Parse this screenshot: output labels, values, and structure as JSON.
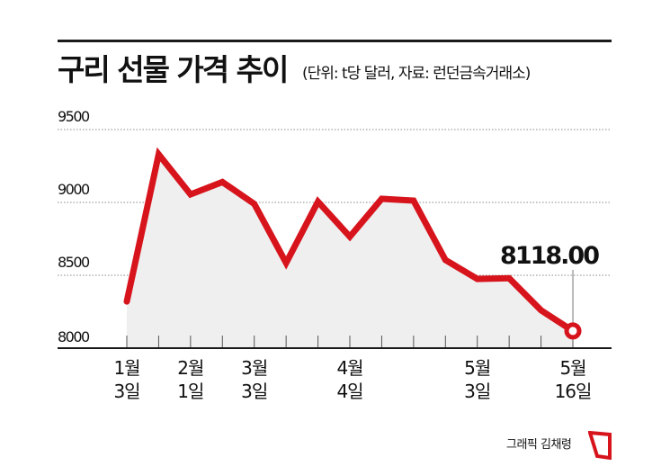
{
  "header": {
    "title": "구리 선물 가격 추이",
    "subtitle": "(단위: t당 달러, 자료: 런던금속거래소)"
  },
  "footer": {
    "credit": "그래픽 김채령"
  },
  "colors": {
    "line": "#d7141c",
    "fill": "#efefef",
    "grid": "#888888",
    "axis": "#1a1a1a"
  },
  "chart_data": {
    "type": "area",
    "title": "구리 선물 가격 추이",
    "subtitle": "(단위: t당 달러, 자료: 런던금속거래소)",
    "xlabel": "",
    "ylabel": "t당 달러",
    "ylim": [
      8000,
      9500
    ],
    "yticks": [
      8000,
      8500,
      9000,
      9500
    ],
    "grid": "horizontal dotted",
    "x_tick_labels": [
      {
        "index": 0,
        "line1": "1월",
        "line2": "3일"
      },
      {
        "index": 2,
        "line1": "2월",
        "line2": "1일"
      },
      {
        "index": 4,
        "line1": "3월",
        "line2": "3일"
      },
      {
        "index": 7,
        "line1": "4월",
        "line2": "4일"
      },
      {
        "index": 11,
        "line1": "5월",
        "line2": "3일"
      },
      {
        "index": 14,
        "line1": "5월",
        "line2": "16일"
      }
    ],
    "series": [
      {
        "name": "구리 선물 가격",
        "values": [
          8320,
          9330,
          9055,
          9140,
          8990,
          8585,
          9005,
          8765,
          9025,
          9012,
          8605,
          8475,
          8480,
          8260,
          8118
        ]
      }
    ],
    "annotations": [
      {
        "index": 14,
        "text": "8118.00"
      }
    ]
  }
}
